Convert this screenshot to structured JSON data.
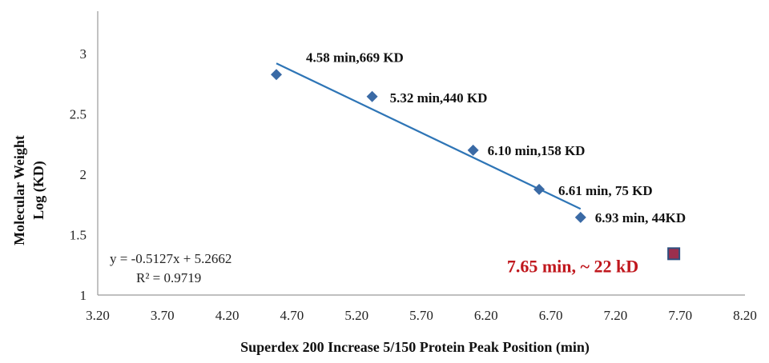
{
  "chart_data": {
    "type": "scatter",
    "xlabel": "Superdex 200 Increase 5/150  Protein Peak Position (min)",
    "ylabel_line1": "Molecular Weight",
    "ylabel_line2": "Log (KD)",
    "xlim": [
      3.2,
      8.2
    ],
    "ylim": [
      1,
      3.35
    ],
    "x_ticks": [
      "3.20",
      "3.70",
      "4.20",
      "4.70",
      "5.20",
      "5.70",
      "6.20",
      "6.70",
      "7.20",
      "7.70",
      "8.20"
    ],
    "x_tick_values": [
      3.2,
      3.7,
      4.2,
      4.7,
      5.2,
      5.7,
      6.2,
      6.7,
      7.2,
      7.7,
      8.2
    ],
    "y_ticks": [
      "1",
      "1.5",
      "2",
      "2.5",
      "3"
    ],
    "y_tick_values": [
      1,
      1.5,
      2,
      2.5,
      3
    ],
    "grid": false,
    "series": [
      {
        "marker": "diamond",
        "color": "#3a6aa5",
        "points": [
          {
            "x": 4.58,
            "y": 2.825,
            "label": "4.58 min,669 KD"
          },
          {
            "x": 5.32,
            "y": 2.643,
            "label": "5.32 min,440 KD"
          },
          {
            "x": 6.1,
            "y": 2.199,
            "label": "6.10 min,158 KD"
          },
          {
            "x": 6.61,
            "y": 1.875,
            "label": "6.61 min, 75 KD"
          },
          {
            "x": 6.93,
            "y": 1.643,
            "label": "6.93 min, 44KD"
          }
        ]
      },
      {
        "marker": "square",
        "color": "#9b2f4e",
        "edge_color": "#2f4f7f",
        "label_color": "#c0171d",
        "points": [
          {
            "x": 7.65,
            "y": 1.342,
            "label": "7.65 min, ~ 22 kD"
          }
        ]
      }
    ],
    "trendline": {
      "slope": -0.5127,
      "intercept": 5.2662,
      "x_range": [
        4.58,
        6.93
      ],
      "color": "#2e75b6",
      "equation": "y = -0.5127x + 5.2662",
      "r2": "R² = 0.9719"
    }
  }
}
